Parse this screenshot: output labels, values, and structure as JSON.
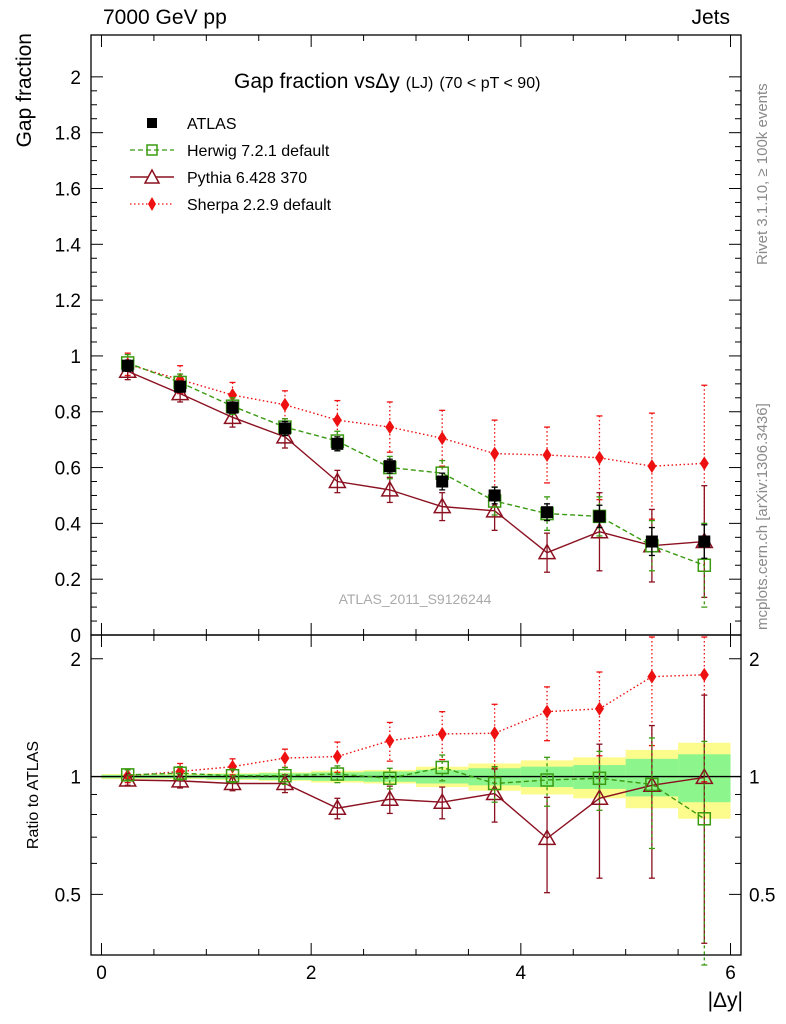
{
  "header": {
    "energy_label": "7000 GeV pp",
    "category_label": "Jets"
  },
  "side": {
    "rivet_label": "Rivet 3.1.10, ≥ 100k events",
    "url_label": "mcplots.cern.ch [arXiv:1306.3436]"
  },
  "colors": {
    "atlas": "#000000",
    "herwig": "#3a9a10",
    "pythia": "#8b1020",
    "sherpa": "#ee1111",
    "band_inner": "#8cf58c",
    "band_outer": "#fcfc8c"
  },
  "chart_data": [
    {
      "type": "line",
      "title": "Gap fraction vsΔy",
      "title_suffix": "(LJ)",
      "title_range": "(70 < pT <  90)",
      "watermark": "ATLAS_2011_S9126244",
      "ylabel": "Gap fraction",
      "xlim": [
        -0.1,
        6.1
      ],
      "ylim": [
        0,
        2.15
      ],
      "y_ticks": [
        0,
        0.2,
        0.4,
        0.6,
        0.8,
        1,
        1.2,
        1.4,
        1.6,
        1.8,
        2
      ],
      "y_tick_labels": [
        "0",
        "0.2",
        "0.4",
        "0.6",
        "0.8",
        "1",
        "1.2",
        "1.4",
        "1.6",
        "1.8",
        "2"
      ],
      "x": [
        0.25,
        0.75,
        1.25,
        1.75,
        2.25,
        2.75,
        3.25,
        3.75,
        4.25,
        4.75,
        5.25,
        5.75
      ],
      "bin_edges": [
        0,
        0.5,
        1,
        1.5,
        2,
        2.5,
        3,
        3.5,
        4,
        4.5,
        5,
        5.5,
        6
      ],
      "legend": [
        "ATLAS",
        "Herwig 7.2.1 default",
        "Pythia 6.428 370",
        "Sherpa 2.2.9 default"
      ],
      "series": [
        {
          "name": "ATLAS",
          "values": [
            0.965,
            0.89,
            0.815,
            0.74,
            0.685,
            0.605,
            0.55,
            0.5,
            0.44,
            0.425,
            0.335,
            0.335
          ],
          "err": [
            0.02,
            0.02,
            0.02,
            0.025,
            0.025,
            0.025,
            0.03,
            0.03,
            0.03,
            0.04,
            0.05,
            0.06
          ]
        },
        {
          "name": "Herwig 7.2.1 default",
          "values": [
            0.975,
            0.905,
            0.82,
            0.745,
            0.695,
            0.6,
            0.58,
            0.48,
            0.435,
            0.425,
            0.32,
            0.25
          ],
          "err": [
            0.03,
            0.03,
            0.03,
            0.03,
            0.035,
            0.04,
            0.045,
            0.05,
            0.06,
            0.07,
            0.09,
            0.15
          ]
        },
        {
          "name": "Pythia 6.428 370",
          "values": [
            0.945,
            0.865,
            0.78,
            0.71,
            0.55,
            0.52,
            0.46,
            0.445,
            0.295,
            0.37,
            0.32,
            0.335
          ],
          "err": [
            0.03,
            0.03,
            0.035,
            0.04,
            0.04,
            0.045,
            0.05,
            0.07,
            0.07,
            0.14,
            0.13,
            0.2
          ]
        },
        {
          "name": "Sherpa 2.2.9 default",
          "values": [
            0.97,
            0.915,
            0.86,
            0.825,
            0.77,
            0.745,
            0.705,
            0.65,
            0.645,
            0.635,
            0.605,
            0.615
          ],
          "err": [
            0.04,
            0.05,
            0.045,
            0.05,
            0.07,
            0.09,
            0.1,
            0.12,
            0.1,
            0.15,
            0.19,
            0.28
          ]
        }
      ]
    },
    {
      "type": "line",
      "title": "Ratio to ATLAS",
      "ylabel": "Ratio to ATLAS",
      "xlabel": "|Δy|",
      "xlim": [
        -0.1,
        6.1
      ],
      "ylim": [
        0.35,
        2.3
      ],
      "x_ticks": [
        0,
        2,
        4,
        6
      ],
      "x_tick_labels": [
        "0",
        "2",
        "4",
        "6"
      ],
      "y_ticks": [
        0.5,
        1,
        2
      ],
      "y_tick_labels": [
        "0.5",
        "1",
        "2"
      ],
      "x": [
        0.25,
        0.75,
        1.25,
        1.75,
        2.25,
        2.75,
        3.25,
        3.75,
        4.25,
        4.75,
        5.25,
        5.75
      ],
      "band_inner_halfwidth": [
        0.01,
        0.01,
        0.015,
        0.02,
        0.025,
        0.03,
        0.04,
        0.05,
        0.06,
        0.07,
        0.11,
        0.14
      ],
      "band_outer_halfwidth": [
        0.015,
        0.015,
        0.02,
        0.025,
        0.035,
        0.04,
        0.06,
        0.08,
        0.1,
        0.12,
        0.17,
        0.22
      ],
      "series": [
        {
          "name": "Herwig 7.2.1 default",
          "values": [
            1.01,
            1.02,
            1.005,
            1.005,
            1.015,
            0.99,
            1.055,
            0.96,
            0.98,
            0.99,
            0.955,
            0.78
          ],
          "err": [
            0.03,
            0.04,
            0.04,
            0.05,
            0.05,
            0.06,
            0.08,
            0.1,
            0.14,
            0.17,
            0.3,
            0.45
          ]
        },
        {
          "name": "Pythia 6.428 370",
          "values": [
            0.98,
            0.975,
            0.96,
            0.96,
            0.83,
            0.875,
            0.86,
            0.905,
            0.695,
            0.88,
            0.95,
            0.995
          ],
          "err": [
            0.03,
            0.04,
            0.04,
            0.05,
            0.05,
            0.07,
            0.08,
            0.14,
            0.19,
            0.33,
            0.4,
            0.62
          ]
        },
        {
          "name": "Sherpa 2.2.9 default",
          "values": [
            1.005,
            1.03,
            1.06,
            1.115,
            1.125,
            1.235,
            1.285,
            1.29,
            1.465,
            1.49,
            1.8,
            1.82
          ],
          "err": [
            0.04,
            0.05,
            0.05,
            0.06,
            0.1,
            0.14,
            0.18,
            0.24,
            0.23,
            0.36,
            0.6,
            0.85
          ]
        }
      ]
    }
  ]
}
